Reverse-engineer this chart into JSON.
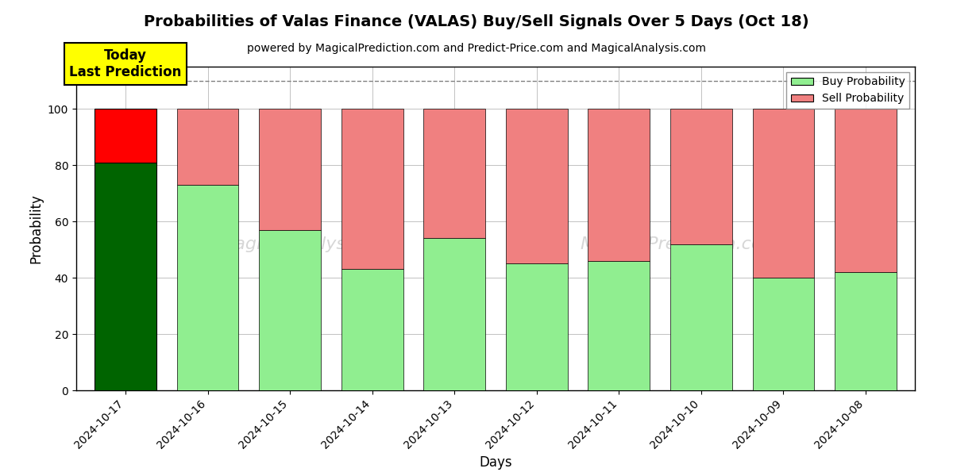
{
  "title": "Probabilities of Valas Finance (VALAS) Buy/Sell Signals Over 5 Days (Oct 18)",
  "subtitle": "powered by MagicalPrediction.com and Predict-Price.com and MagicalAnalysis.com",
  "xlabel": "Days",
  "ylabel": "Probability",
  "dates": [
    "2024-10-17",
    "2024-10-16",
    "2024-10-15",
    "2024-10-14",
    "2024-10-13",
    "2024-10-12",
    "2024-10-11",
    "2024-10-10",
    "2024-10-09",
    "2024-10-08"
  ],
  "buy_values": [
    81,
    73,
    57,
    43,
    54,
    45,
    46,
    52,
    40,
    42
  ],
  "sell_values": [
    19,
    27,
    43,
    57,
    46,
    55,
    54,
    48,
    60,
    58
  ],
  "today_buy_color": "#006400",
  "today_sell_color": "#FF0000",
  "buy_color": "#90EE90",
  "sell_color": "#F08080",
  "today_label_bg": "#FFFF00",
  "today_label_text": "Today\nLast Prediction",
  "legend_buy_label": "Buy Probability",
  "legend_sell_label": "Sell Probability",
  "ylim": [
    0,
    115
  ],
  "yticks": [
    0,
    20,
    40,
    60,
    80,
    100
  ],
  "dashed_line_y": 110,
  "bar_width": 0.75,
  "bg_color": "#ffffff",
  "grid_color": "#aaaaaa",
  "fig_width": 12,
  "fig_height": 6
}
